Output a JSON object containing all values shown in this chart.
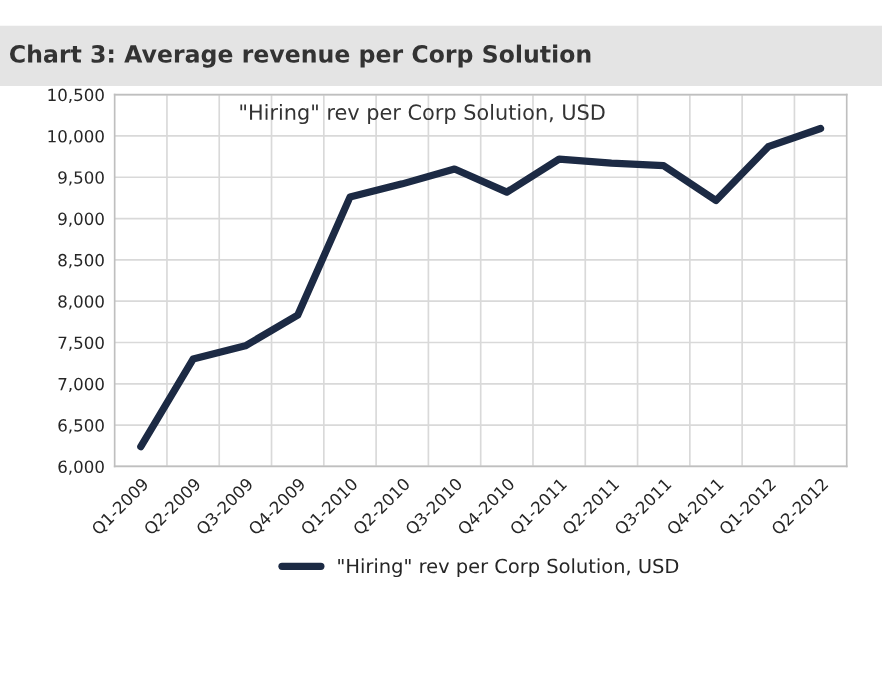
{
  "chart_data": {
    "type": "line",
    "title": "Chart 3: Average revenue per Corp Solution",
    "subtitle": "\"Hiring\" rev per Corp Solution, USD",
    "categories": [
      "Q1-2009",
      "Q2-2009",
      "Q3-2009",
      "Q4-2009",
      "Q1-2010",
      "Q2-2010",
      "Q3-2010",
      "Q4-2010",
      "Q1-2011",
      "Q2-2011",
      "Q3-2011",
      "Q4-2011",
      "Q1-2012",
      "Q2-2012"
    ],
    "series": [
      {
        "name": "\"Hiring\" rev per Corp Solution, USD",
        "color": "#1c2a44",
        "values": [
          6240,
          7300,
          7460,
          7830,
          9260,
          9420,
          9600,
          9320,
          9720,
          9670,
          9640,
          9220,
          9870,
          10090
        ]
      }
    ],
    "ylim": [
      6000,
      10500
    ],
    "yticks": [
      {
        "value": 6000,
        "label": "6,000"
      },
      {
        "value": 6500,
        "label": "6,500"
      },
      {
        "value": 7000,
        "label": "7,000"
      },
      {
        "value": 7500,
        "label": "7,500"
      },
      {
        "value": 8000,
        "label": "8,000"
      },
      {
        "value": 8500,
        "label": "8,500"
      },
      {
        "value": 9000,
        "label": "9,000"
      },
      {
        "value": 9500,
        "label": "9,500"
      },
      {
        "value": 10000,
        "label": "10,000"
      },
      {
        "value": 10500,
        "label": "10,500"
      }
    ],
    "grid": true,
    "legend": "bottom",
    "marker": "none",
    "line_style": "solid"
  }
}
